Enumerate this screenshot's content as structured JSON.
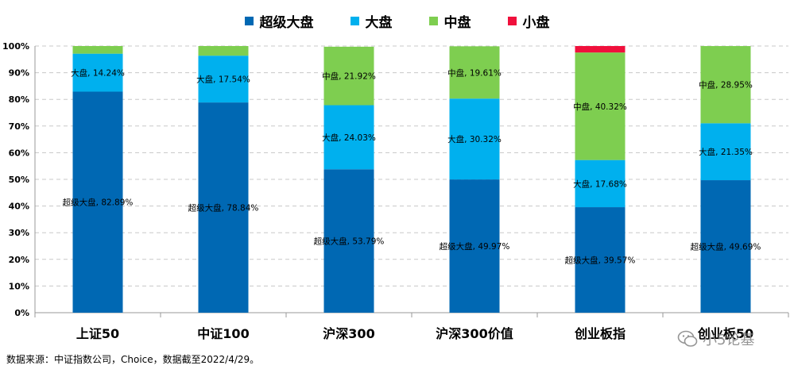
{
  "colors": {
    "超级大盘": "#0068B3",
    "大盘": "#00B0EE",
    "中盘": "#7ECE50",
    "小盘": "#F0103C",
    "grid": "#c8c8c8",
    "axis": "#999999"
  },
  "legend": [
    {
      "name": "超级大盘",
      "color": "#0068B3"
    },
    {
      "name": "大盘",
      "color": "#00B0EE"
    },
    {
      "name": "中盘",
      "color": "#7ECE50"
    },
    {
      "name": "小盘",
      "color": "#F0103C"
    }
  ],
  "chart_data": {
    "type": "bar",
    "stacked": true,
    "categories": [
      "上证50",
      "中证100",
      "沪深300",
      "沪深300价值",
      "创业板指",
      "创业板50"
    ],
    "series": [
      {
        "name": "超级大盘",
        "values": [
          82.89,
          78.84,
          53.79,
          49.97,
          39.57,
          49.69
        ],
        "labels": [
          "超级大盘, 82.89%",
          "超级大盘, 78.84%",
          "超级大盘, 53.79%",
          "超级大盘, 49.97%",
          "超级大盘, 39.57%",
          "超级大盘, 49.69%"
        ]
      },
      {
        "name": "大盘",
        "values": [
          14.24,
          17.54,
          24.03,
          30.32,
          17.68,
          21.35
        ],
        "labels": [
          "大盘, 14.24%",
          "大盘, 17.54%",
          "大盘, 24.03%",
          "大盘, 30.32%",
          "大盘, 17.68%",
          "大盘, 21.35%"
        ]
      },
      {
        "name": "中盘",
        "values": [
          2.87,
          3.62,
          21.92,
          19.61,
          40.32,
          28.95
        ],
        "labels": [
          "",
          "",
          "中盘, 21.92%",
          "中盘, 19.61%",
          "中盘, 40.32%",
          "中盘, 28.95%"
        ]
      },
      {
        "name": "小盘",
        "values": [
          0,
          0,
          0,
          0,
          2.43,
          0
        ],
        "labels": [
          "",
          "",
          "",
          "",
          "",
          ""
        ]
      }
    ],
    "yticks": [
      "0%",
      "10%",
      "20%",
      "30%",
      "40%",
      "50%",
      "60%",
      "70%",
      "80%",
      "90%",
      "100%"
    ],
    "ylim": [
      0,
      100
    ],
    "grid": true,
    "legend_position": "top-center"
  },
  "source_note": "数据来源：中证指数公司，Choice，数据截至2022/4/29。",
  "watermark": "小5论基"
}
